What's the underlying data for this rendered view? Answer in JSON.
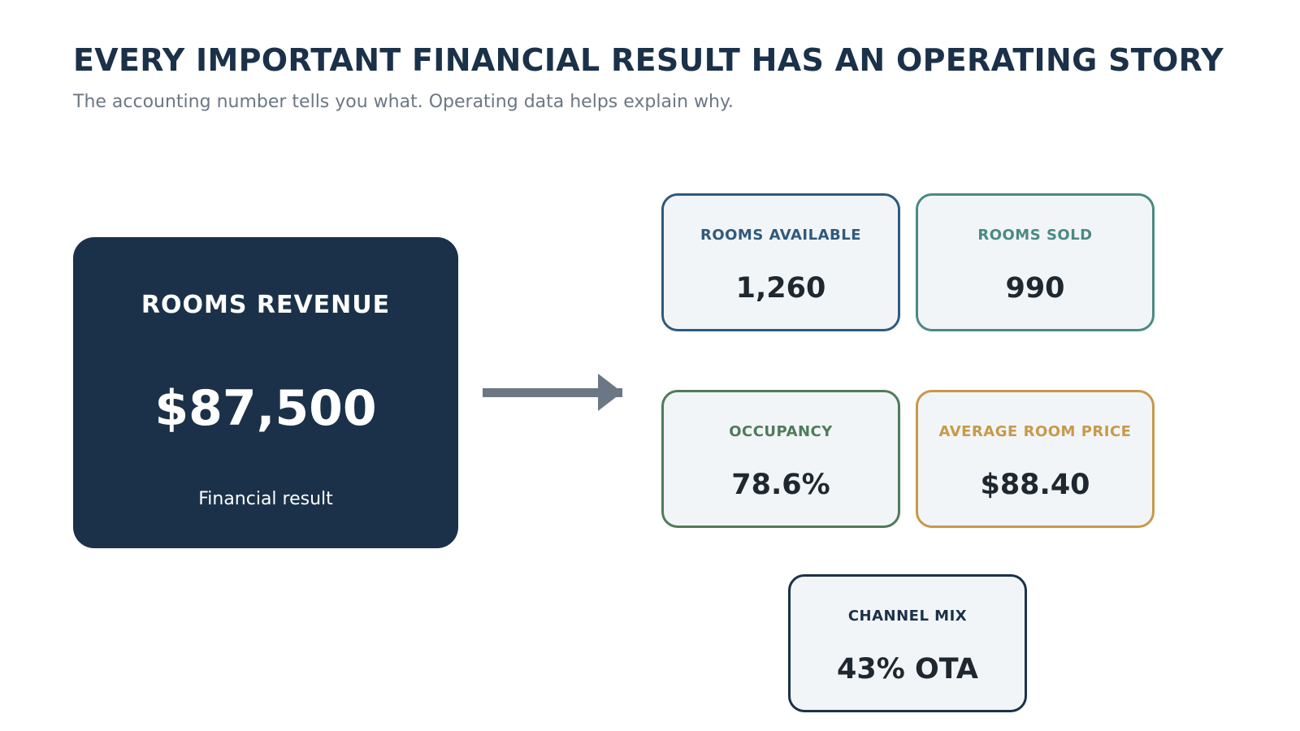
{
  "header": {
    "title": "EVERY IMPORTANT FINANCIAL RESULT HAS AN OPERATING STORY",
    "subtitle": "The accounting number tells you what. Operating data helps explain why."
  },
  "result": {
    "label": "ROOMS REVENUE",
    "value": "$87,500",
    "caption": "Financial result",
    "color": "#1b3149"
  },
  "drivers": {
    "rooms_available": {
      "label": "ROOMS AVAILABLE",
      "value": "1,260",
      "color": "#2f5a7d"
    },
    "rooms_sold": {
      "label": "ROOMS SOLD",
      "value": "990",
      "color": "#4a8a84"
    },
    "occupancy": {
      "label": "OCCUPANCY",
      "value": "78.6%",
      "color": "#4e7c59"
    },
    "average_room_price": {
      "label": "AVERAGE ROOM PRICE",
      "value": "$88.40",
      "color": "#c8994a"
    },
    "channel_mix": {
      "label": "CHANNEL MIX",
      "value": "43% OTA",
      "color": "#1b3149"
    }
  },
  "arrow": {
    "color": "#6b7784"
  }
}
